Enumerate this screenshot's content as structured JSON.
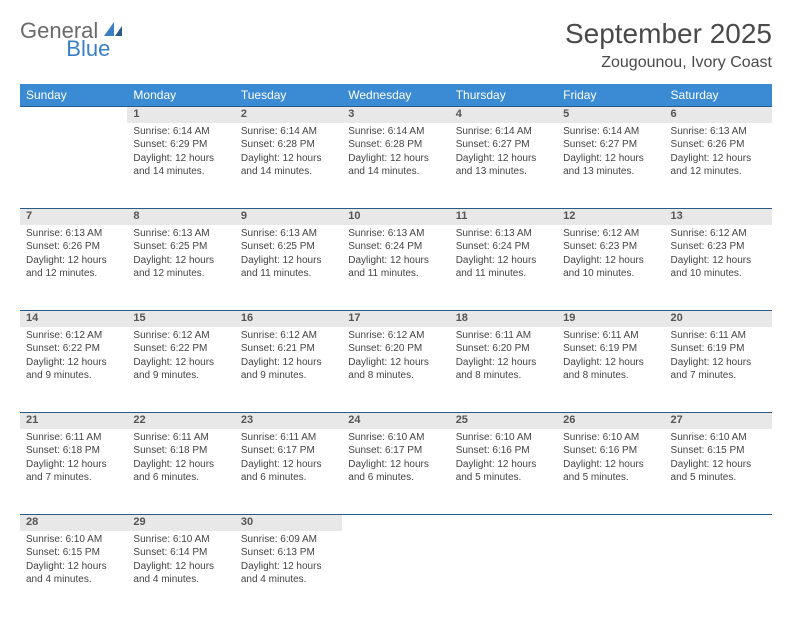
{
  "logo": {
    "text1": "General",
    "text2": "Blue"
  },
  "title": "September 2025",
  "location": "Zougounou, Ivory Coast",
  "colors": {
    "header_bg": "#3b8bd4",
    "header_text": "#ffffff",
    "daynum_bg": "#e8e8e8",
    "border": "#2a5a8a",
    "accent": "#3b7fc4",
    "text": "#444444"
  },
  "daysOfWeek": [
    "Sunday",
    "Monday",
    "Tuesday",
    "Wednesday",
    "Thursday",
    "Friday",
    "Saturday"
  ],
  "weeks": [
    [
      null,
      {
        "n": "1",
        "sunrise": "6:14 AM",
        "sunset": "6:29 PM",
        "daylight": "12 hours and 14 minutes."
      },
      {
        "n": "2",
        "sunrise": "6:14 AM",
        "sunset": "6:28 PM",
        "daylight": "12 hours and 14 minutes."
      },
      {
        "n": "3",
        "sunrise": "6:14 AM",
        "sunset": "6:28 PM",
        "daylight": "12 hours and 14 minutes."
      },
      {
        "n": "4",
        "sunrise": "6:14 AM",
        "sunset": "6:27 PM",
        "daylight": "12 hours and 13 minutes."
      },
      {
        "n": "5",
        "sunrise": "6:14 AM",
        "sunset": "6:27 PM",
        "daylight": "12 hours and 13 minutes."
      },
      {
        "n": "6",
        "sunrise": "6:13 AM",
        "sunset": "6:26 PM",
        "daylight": "12 hours and 12 minutes."
      }
    ],
    [
      {
        "n": "7",
        "sunrise": "6:13 AM",
        "sunset": "6:26 PM",
        "daylight": "12 hours and 12 minutes."
      },
      {
        "n": "8",
        "sunrise": "6:13 AM",
        "sunset": "6:25 PM",
        "daylight": "12 hours and 12 minutes."
      },
      {
        "n": "9",
        "sunrise": "6:13 AM",
        "sunset": "6:25 PM",
        "daylight": "12 hours and 11 minutes."
      },
      {
        "n": "10",
        "sunrise": "6:13 AM",
        "sunset": "6:24 PM",
        "daylight": "12 hours and 11 minutes."
      },
      {
        "n": "11",
        "sunrise": "6:13 AM",
        "sunset": "6:24 PM",
        "daylight": "12 hours and 11 minutes."
      },
      {
        "n": "12",
        "sunrise": "6:12 AM",
        "sunset": "6:23 PM",
        "daylight": "12 hours and 10 minutes."
      },
      {
        "n": "13",
        "sunrise": "6:12 AM",
        "sunset": "6:23 PM",
        "daylight": "12 hours and 10 minutes."
      }
    ],
    [
      {
        "n": "14",
        "sunrise": "6:12 AM",
        "sunset": "6:22 PM",
        "daylight": "12 hours and 9 minutes."
      },
      {
        "n": "15",
        "sunrise": "6:12 AM",
        "sunset": "6:22 PM",
        "daylight": "12 hours and 9 minutes."
      },
      {
        "n": "16",
        "sunrise": "6:12 AM",
        "sunset": "6:21 PM",
        "daylight": "12 hours and 9 minutes."
      },
      {
        "n": "17",
        "sunrise": "6:12 AM",
        "sunset": "6:20 PM",
        "daylight": "12 hours and 8 minutes."
      },
      {
        "n": "18",
        "sunrise": "6:11 AM",
        "sunset": "6:20 PM",
        "daylight": "12 hours and 8 minutes."
      },
      {
        "n": "19",
        "sunrise": "6:11 AM",
        "sunset": "6:19 PM",
        "daylight": "12 hours and 8 minutes."
      },
      {
        "n": "20",
        "sunrise": "6:11 AM",
        "sunset": "6:19 PM",
        "daylight": "12 hours and 7 minutes."
      }
    ],
    [
      {
        "n": "21",
        "sunrise": "6:11 AM",
        "sunset": "6:18 PM",
        "daylight": "12 hours and 7 minutes."
      },
      {
        "n": "22",
        "sunrise": "6:11 AM",
        "sunset": "6:18 PM",
        "daylight": "12 hours and 6 minutes."
      },
      {
        "n": "23",
        "sunrise": "6:11 AM",
        "sunset": "6:17 PM",
        "daylight": "12 hours and 6 minutes."
      },
      {
        "n": "24",
        "sunrise": "6:10 AM",
        "sunset": "6:17 PM",
        "daylight": "12 hours and 6 minutes."
      },
      {
        "n": "25",
        "sunrise": "6:10 AM",
        "sunset": "6:16 PM",
        "daylight": "12 hours and 5 minutes."
      },
      {
        "n": "26",
        "sunrise": "6:10 AM",
        "sunset": "6:16 PM",
        "daylight": "12 hours and 5 minutes."
      },
      {
        "n": "27",
        "sunrise": "6:10 AM",
        "sunset": "6:15 PM",
        "daylight": "12 hours and 5 minutes."
      }
    ],
    [
      {
        "n": "28",
        "sunrise": "6:10 AM",
        "sunset": "6:15 PM",
        "daylight": "12 hours and 4 minutes."
      },
      {
        "n": "29",
        "sunrise": "6:10 AM",
        "sunset": "6:14 PM",
        "daylight": "12 hours and 4 minutes."
      },
      {
        "n": "30",
        "sunrise": "6:09 AM",
        "sunset": "6:13 PM",
        "daylight": "12 hours and 4 minutes."
      },
      null,
      null,
      null,
      null
    ]
  ],
  "labels": {
    "sunrise": "Sunrise: ",
    "sunset": "Sunset: ",
    "daylight": "Daylight: "
  }
}
